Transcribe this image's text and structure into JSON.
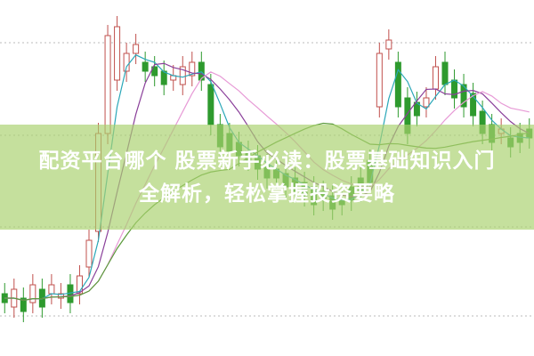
{
  "headline": {
    "line1": "配资平台哪个 股票新手必读：股票基础知识入门",
    "line2": "全解析，轻松掌握投资要略"
  },
  "colors": {
    "rising_candle": "#c0504d",
    "falling_candle": "#2e9a2e",
    "banner": "#aad26e",
    "ma_lines": [
      "#e79ad6",
      "#8a3f9a",
      "#2aa7b8",
      "#5a9a3a"
    ]
  }
}
